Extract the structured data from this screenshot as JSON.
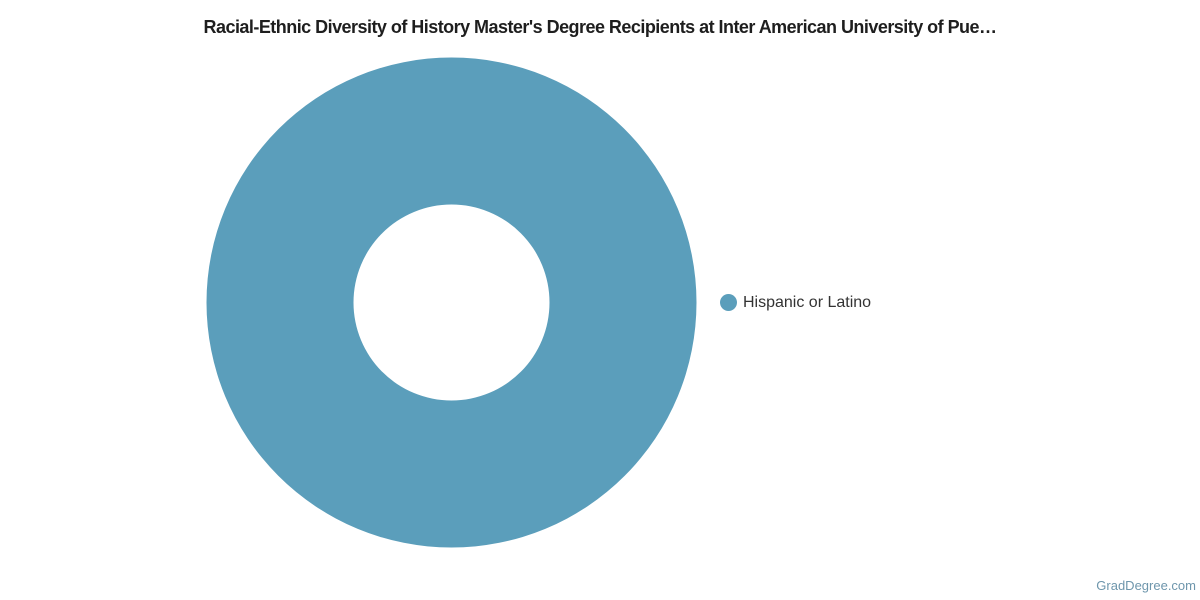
{
  "chart_data": {
    "type": "pie",
    "donut": true,
    "title": "Racial-Ethnic Diversity of History Master's Degree Recipients at Inter American University of Pue…",
    "labels": [
      "Hispanic or Latino"
    ],
    "values": [
      100
    ],
    "colors": [
      "#5b9ebb"
    ],
    "hole_ratio": 0.4,
    "legend_position": "right",
    "background_color": "#ffffff",
    "title_color": "#1e1e1e",
    "legend_text_color": "#333333"
  },
  "watermark": {
    "text": "GradDegree.com",
    "color": "#6e96ac"
  }
}
